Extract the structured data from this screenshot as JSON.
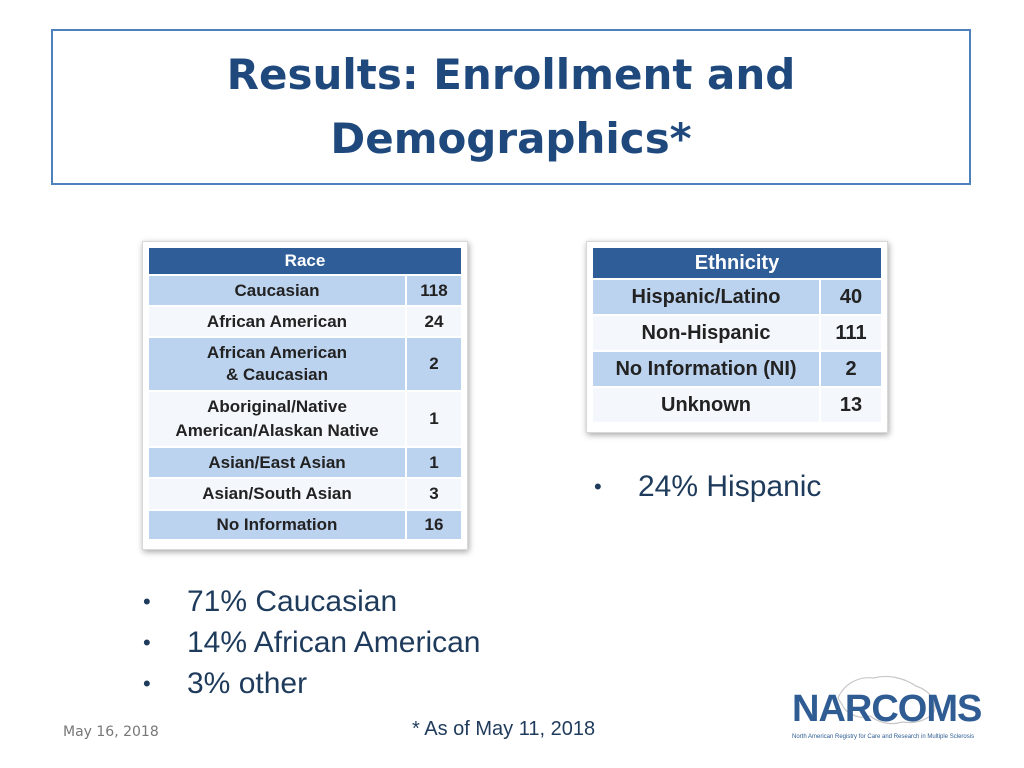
{
  "slide": {
    "title": "Results: Enrollment and Demographics*",
    "footer_date": "May 16, 2018",
    "footnote": "* As of May 11, 2018"
  },
  "race_table": {
    "header": "Race",
    "rows": [
      {
        "label": "Caucasian",
        "value": "118"
      },
      {
        "label": "African American",
        "value": "24"
      },
      {
        "label": "African American & Caucasian",
        "value": "2"
      },
      {
        "label": "Aboriginal/Native American/Alaskan Native",
        "value": "1"
      },
      {
        "label": "Asian/East Asian",
        "value": "1"
      },
      {
        "label": "Asian/South Asian",
        "value": "3"
      },
      {
        "label": "No Information",
        "value": "16"
      }
    ]
  },
  "ethnicity_table": {
    "header": "Ethnicity",
    "rows": [
      {
        "label": "Hispanic/Latino",
        "value": "40"
      },
      {
        "label": "Non-Hispanic",
        "value": "111"
      },
      {
        "label": "No Information (NI)",
        "value": "2"
      },
      {
        "label": "Unknown",
        "value": "13"
      }
    ]
  },
  "race_bullets": [
    "71% Caucasian",
    "14% African American",
    "3% other"
  ],
  "ethnicity_bullets": [
    "24% Hispanic"
  ],
  "logo": {
    "wordmark": "NARCOMS",
    "tagline": "North American Registry for Care and Research in Multiple Sclerosis"
  },
  "colors": {
    "title": "#1f497d",
    "table_header": "#2f5d97",
    "table_row_blue": "#bcd3ef",
    "table_row_light": "#f4f8fd",
    "bullet_text": "#1f3b5c"
  }
}
